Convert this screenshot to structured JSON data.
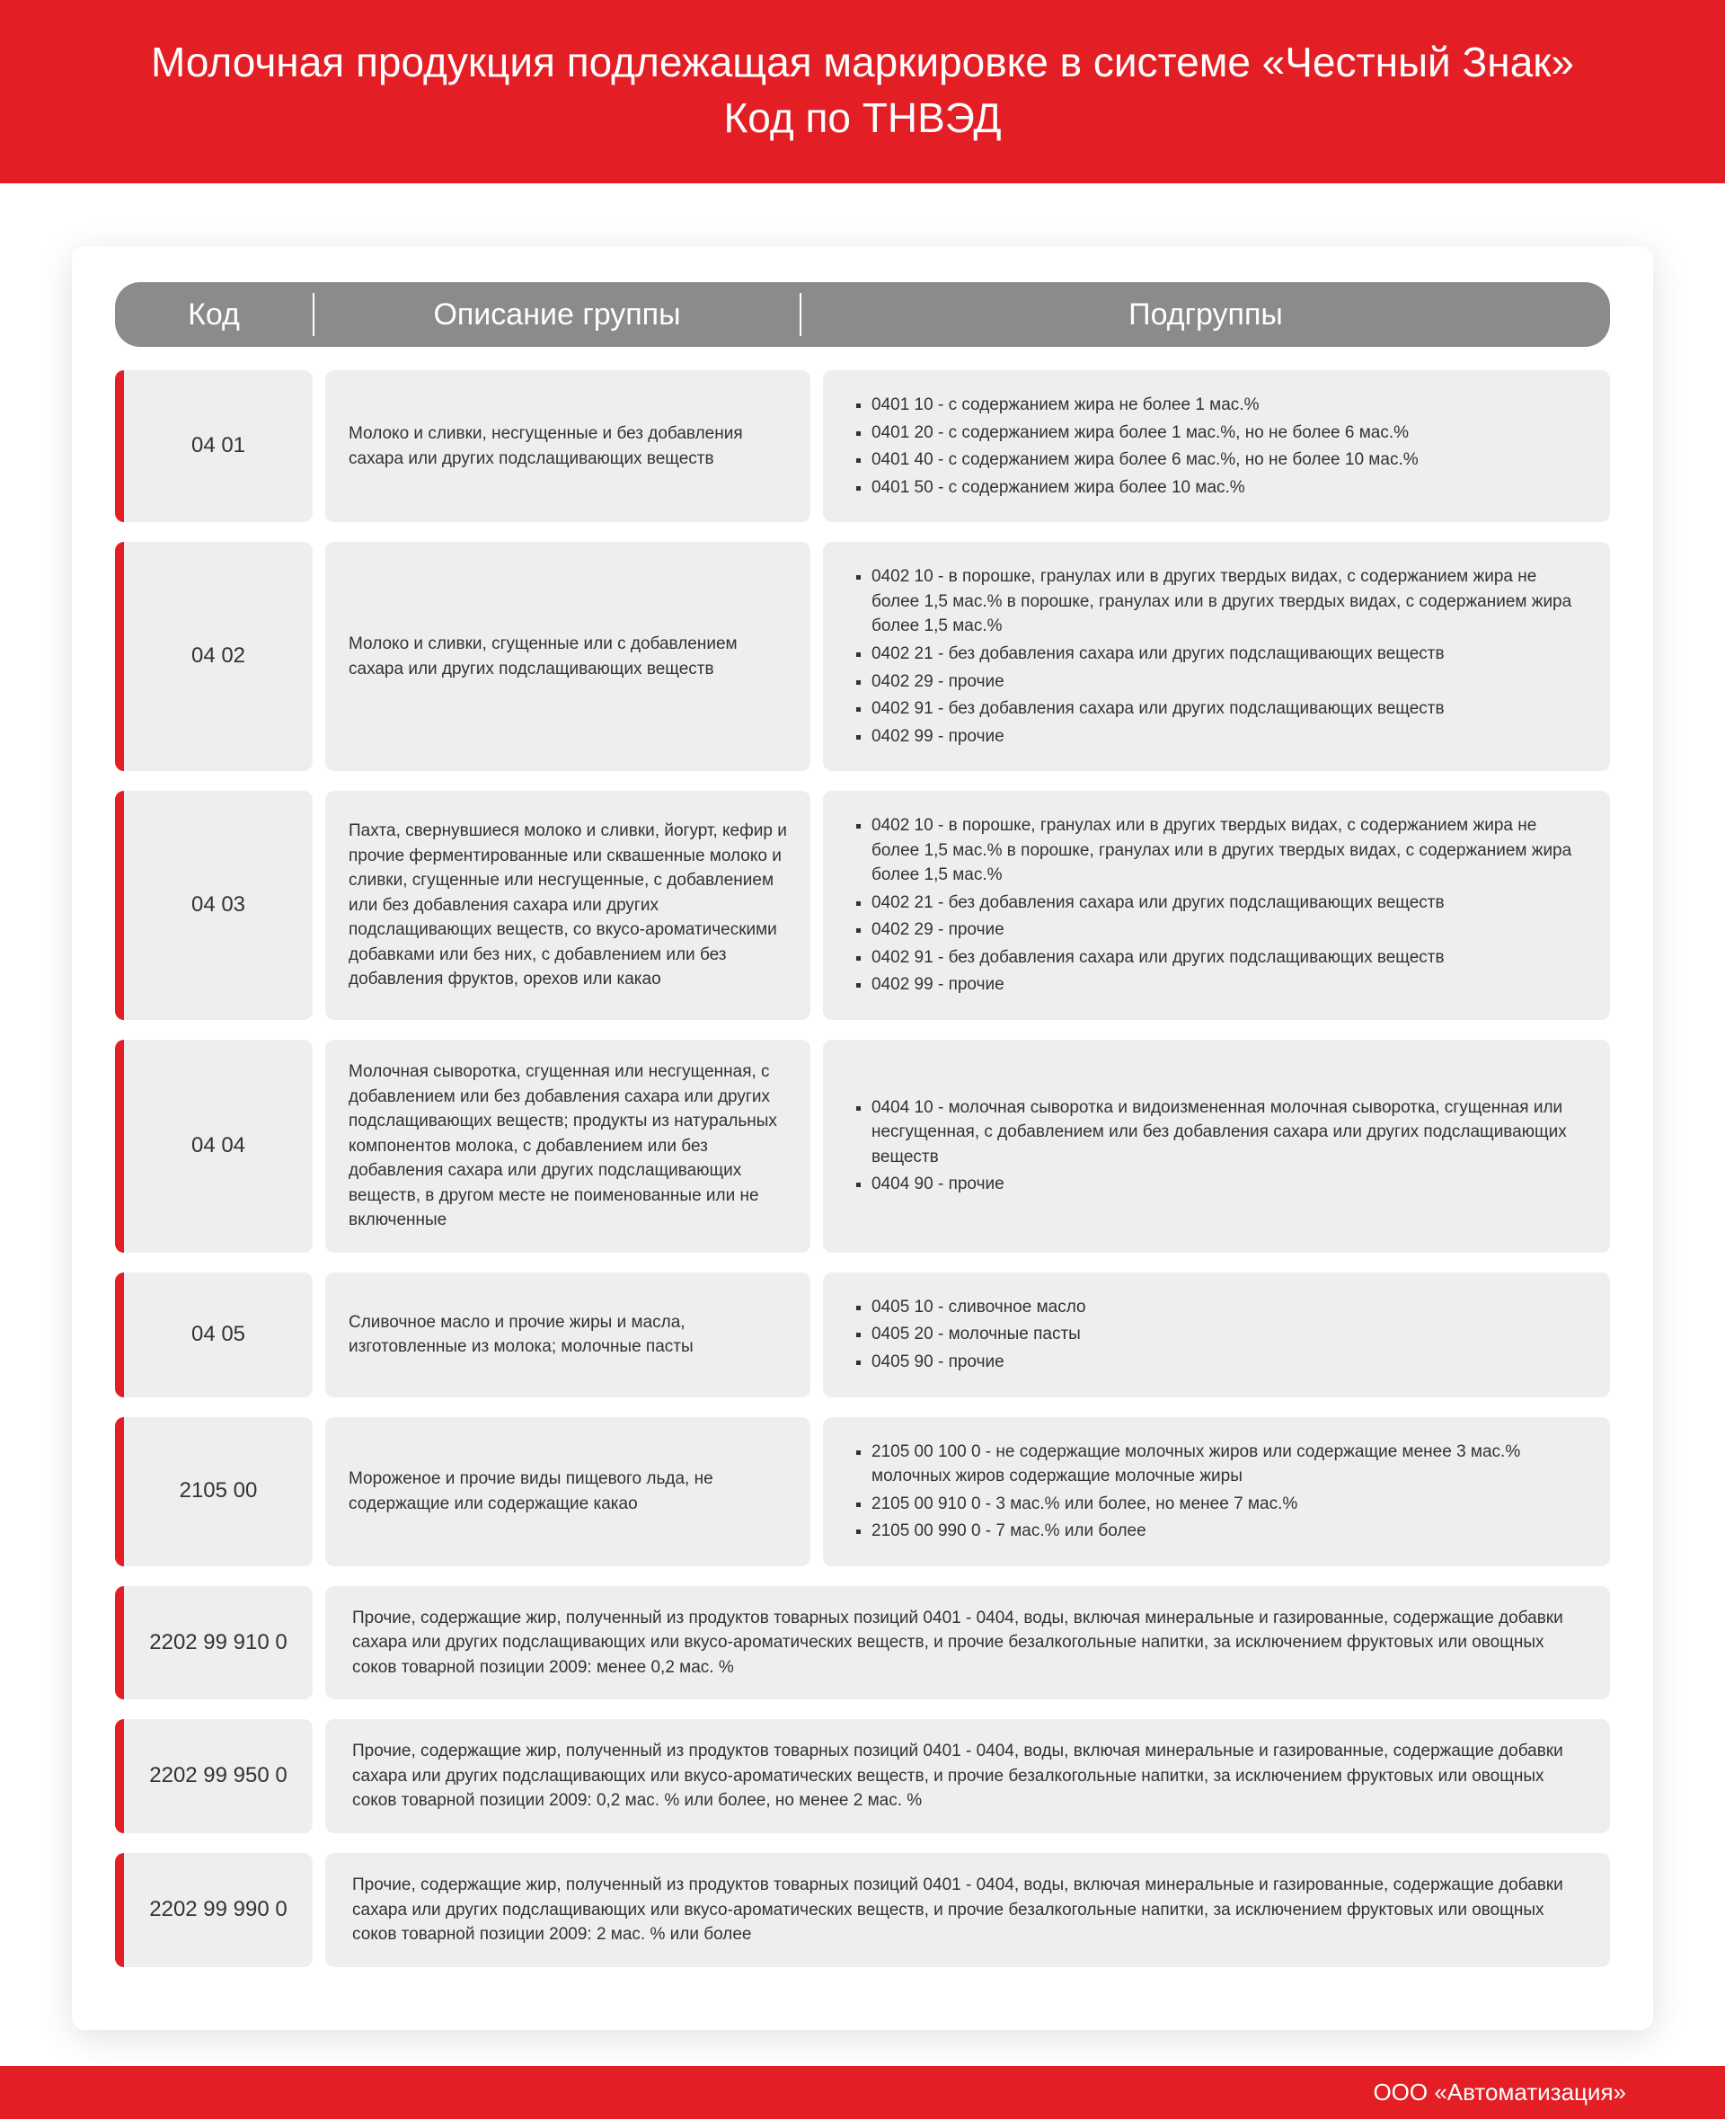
{
  "colors": {
    "accent": "#e31e24",
    "header_bg": "#8b8b8b",
    "cell_bg": "#eeeeee",
    "page_bg": "#ffffff",
    "text": "#333333",
    "header_text": "#ffffff"
  },
  "title_line1": "Молочная продукция подлежащая маркировке в системе «Честный Знак»",
  "title_line2": "Код по ТНВЭД",
  "columns": {
    "code": "Код",
    "desc": "Описание группы",
    "sub": "Подгруппы"
  },
  "rows": [
    {
      "code": "04 01",
      "desc": "Молоко и сливки, несгущенные и без добавления сахара или других подслащивающих веществ",
      "sub": [
        "0401 10 - с содержанием жира не более 1 мас.%",
        "0401 20 - с содержанием жира более 1 мас.%, но не более 6 мас.%",
        "0401 40 - с содержанием жира более 6 мас.%, но не более 10 мас.%",
        "0401 50 - с содержанием жира более 10 мас.%"
      ]
    },
    {
      "code": "04 02",
      "desc": "Молоко и сливки, сгущенные или с добавлением сахара или других подслащивающих веществ",
      "sub": [
        "0402 10 - в порошке, гранулах или в других твердых видах, с содержанием жира не более 1,5 мас.% в порошке, гранулах или в других твердых видах, с содержанием жира более 1,5 мас.%",
        "0402 21 - без добавления сахара или других подслащивающих веществ",
        "0402 29 - прочие",
        "0402 91 - без добавления сахара или других подслащивающих веществ",
        "0402 99 - прочие"
      ]
    },
    {
      "code": "04 03",
      "desc": "Пахта, свернувшиеся молоко и сливки, йогурт, кефир и прочие ферментированные или сквашенные молоко и сливки, сгущенные или несгущенные, с добавлением или без добавления сахара или других подслащивающих веществ, со вкусо-ароматическими добавками или без них, с добавлением или без добавления фруктов, орехов или какао",
      "sub": [
        "0402 10 - в порошке, гранулах или в других твердых видах, с содержанием жира не более 1,5 мас.% в порошке, гранулах или в других твердых видах, с содержанием жира более 1,5 мас.%",
        "0402 21 - без добавления сахара или других подслащивающих веществ",
        "0402 29 - прочие",
        "0402 91 - без добавления сахара или других подслащивающих веществ",
        "0402 99 - прочие"
      ]
    },
    {
      "code": "04 04",
      "desc": "Молочная сыворотка, сгущенная или несгущенная, с добавлением или без добавления сахара или других подслащивающих веществ; продукты из натуральных компонентов молока, с добавлением или без добавления сахара или других подслащивающих веществ, в другом месте не поименованные или не включенные",
      "sub": [
        "0404 10 - молочная сыворотка и видоизмененная молочная сыворотка, сгущенная или несгущенная, с добавлением или без добавления сахара или других подслащивающих веществ",
        "0404 90 - прочие"
      ]
    },
    {
      "code": "04 05",
      "desc": "Сливочное масло и прочие жиры и масла, изготовленные из молока; молочные пасты",
      "sub": [
        "0405 10 - сливочное масло",
        "0405 20 - молочные пасты",
        "0405 90 - прочие"
      ]
    },
    {
      "code": "2105 00",
      "desc": "Мороженое и прочие виды пищевого льда, не содержащие или содержащие какао",
      "sub": [
        "2105 00 100 0 - не содержащие молочных жиров или содержащие менее 3 мас.% молочных жиров содержащие молочные жиры",
        "2105 00 910 0 - 3 мас.% или более, но менее 7 мас.%",
        "2105 00 990 0 - 7 мас.% или более"
      ]
    },
    {
      "code": "2202 99 910 0",
      "wide": "Прочие, содержащие жир, полученный из продуктов товарных позиций 0401 - 0404, воды, включая минеральные и газированные, содержащие добавки сахара или других подслащивающих или вкусо-ароматических веществ, и прочие безалкогольные напитки, за исключением фруктовых или овощных соков товарной позиции 2009: менее 0,2 мас. %"
    },
    {
      "code": "2202 99 950 0",
      "wide": "Прочие, содержащие жир, полученный из продуктов товарных позиций 0401 - 0404, воды, включая минеральные и газированные, содержащие добавки сахара или других подслащивающих или вкусо-ароматических веществ, и прочие безалкогольные напитки, за исключением фруктовых или овощных соков товарной позиции 2009: 0,2 мас. % или более, но менее 2 мас. %"
    },
    {
      "code": "2202 99 990 0",
      "wide": "Прочие, содержащие жир, полученный из продуктов товарных позиций 0401 - 0404, воды, включая минеральные и газированные, содержащие добавки сахара или других подслащивающих или вкусо-ароматических веществ, и прочие безалкогольные напитки, за исключением фруктовых или овощных соков товарной позиции 2009: 2 мас. % или более"
    }
  ],
  "footer": "ООО «Автоматизация»"
}
